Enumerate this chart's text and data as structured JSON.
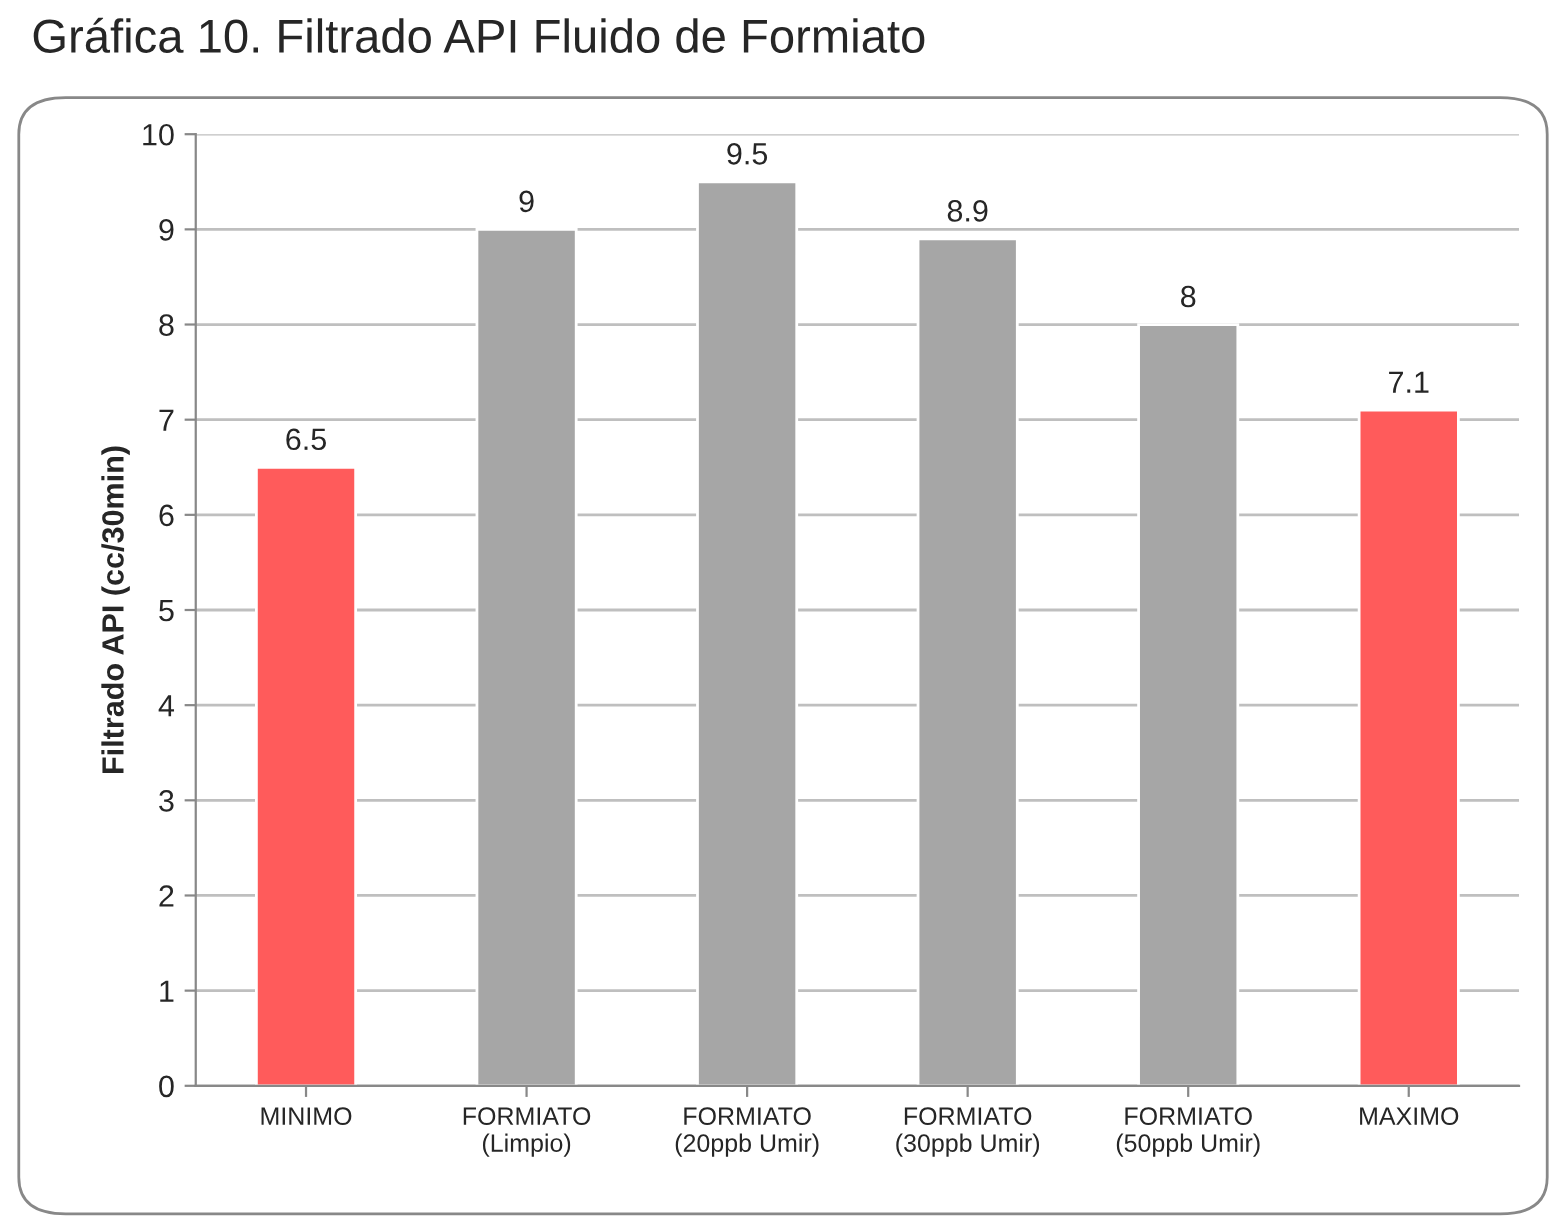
{
  "chart_data": {
    "type": "bar",
    "title": "Gráfica 10. Filtrado API Fluido de Formiato",
    "ylabel": "Filtrado API (cc/30min)",
    "categories": [
      "MINIMO",
      "FORMIATO\n(Limpio)",
      "FORMIATO\n(20ppb Umir)",
      "FORMIATO\n(30ppb Umir)",
      "FORMIATO\n(50ppb Umir)",
      "MAXIMO"
    ],
    "values": [
      6.5,
      9,
      9.5,
      8.9,
      8,
      7.1
    ],
    "colors": [
      "#ff5b5b",
      "#a6a6a6",
      "#a6a6a6",
      "#a6a6a6",
      "#a6a6a6",
      "#ff5b5b"
    ],
    "ylim": [
      0,
      10
    ],
    "yticks": [
      0,
      1,
      2,
      3,
      4,
      5,
      6,
      7,
      8,
      9,
      10
    ],
    "grid": "y",
    "data_labels": true
  }
}
